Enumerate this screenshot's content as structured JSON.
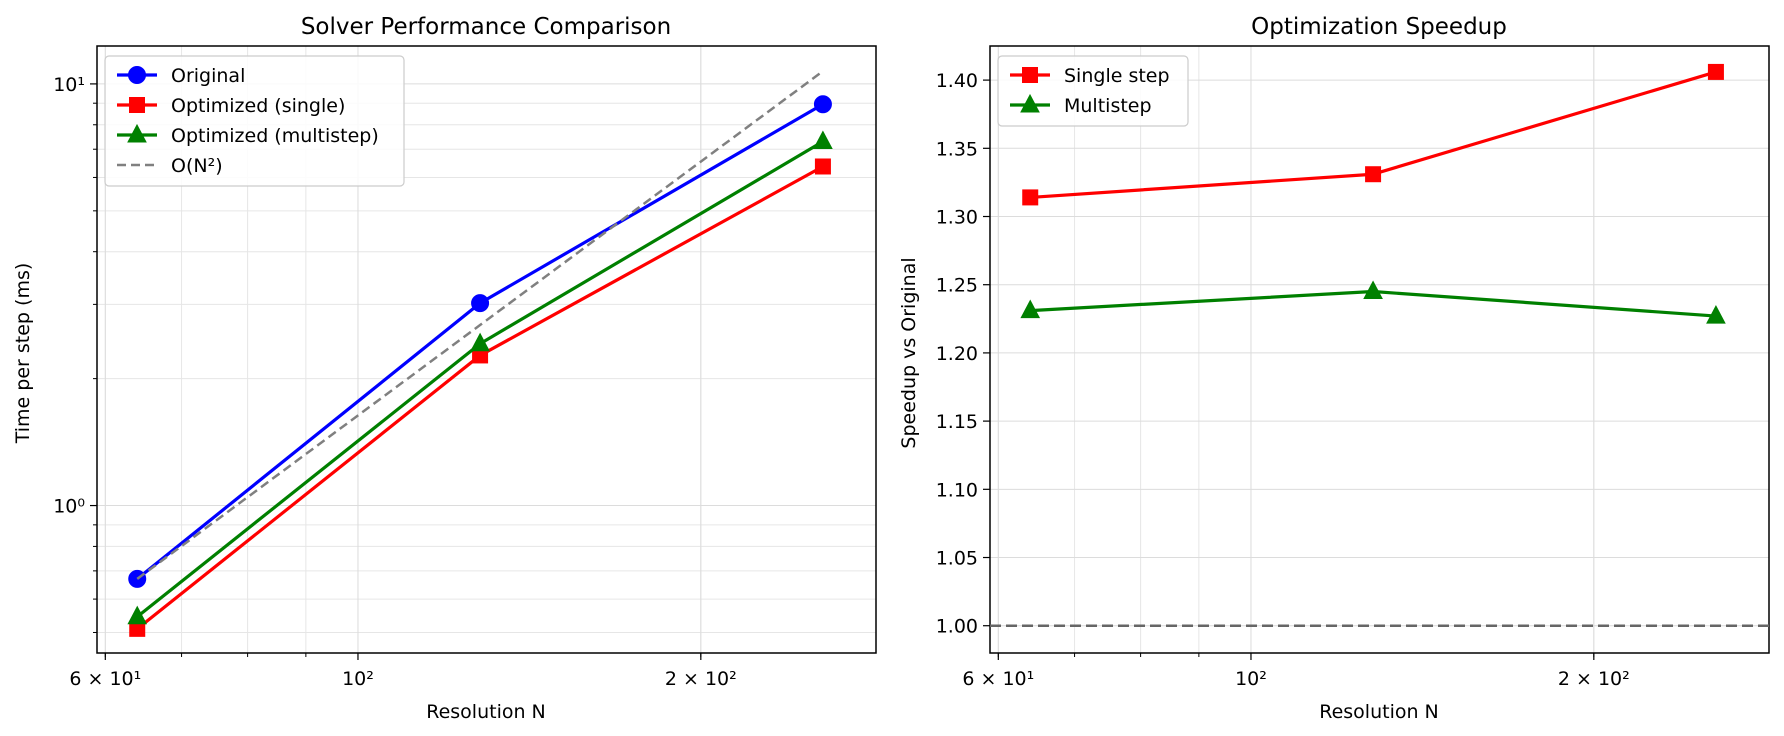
{
  "chart_data": [
    {
      "type": "line",
      "title": "Solver Performance Comparison",
      "xlabel": "Resolution N",
      "ylabel": "Time per step (ms)",
      "xscale": "log",
      "yscale": "log",
      "xlim": [
        59,
        285
      ],
      "ylim": [
        0.447,
        12.3
      ],
      "grid": true,
      "legend_position": "top-left",
      "x": [
        64,
        128,
        256
      ],
      "x_ticks": [
        {
          "value": 60,
          "label": "6 × 10¹"
        },
        {
          "value": 100,
          "label": "10²"
        },
        {
          "value": 200,
          "label": "2 × 10²"
        }
      ],
      "y_ticks": [
        {
          "value": 1,
          "label": "10⁰"
        },
        {
          "value": 10,
          "label": "10¹"
        }
      ],
      "series": [
        {
          "name": "Original",
          "values": [
            0.67,
            3.02,
            8.95
          ],
          "color": "#0000ff",
          "marker": "circle",
          "style": "solid"
        },
        {
          "name": "Optimized (single)",
          "values": [
            0.51,
            2.27,
            6.37
          ],
          "color": "#ff0000",
          "marker": "square",
          "style": "solid"
        },
        {
          "name": "Optimized (multistep)",
          "values": [
            0.545,
            2.42,
            7.3
          ],
          "color": "#008000",
          "marker": "triangle",
          "style": "solid"
        },
        {
          "name": "O(N²)",
          "values": [
            0.67,
            2.68,
            10.72
          ],
          "color": "#808080",
          "marker": "none",
          "style": "dashed"
        }
      ]
    },
    {
      "type": "line",
      "title": "Optimization Speedup",
      "xlabel": "Resolution N",
      "ylabel": "Speedup vs Original",
      "xscale": "log",
      "yscale": "linear",
      "xlim": [
        59,
        285
      ],
      "ylim": [
        0.98,
        1.425
      ],
      "grid": true,
      "legend_position": "top-left",
      "x": [
        64,
        128,
        256
      ],
      "x_ticks": [
        {
          "value": 60,
          "label": "6 × 10¹"
        },
        {
          "value": 100,
          "label": "10²"
        },
        {
          "value": 200,
          "label": "2 × 10²"
        }
      ],
      "y_ticks": [
        {
          "value": 1.0,
          "label": "1.00"
        },
        {
          "value": 1.05,
          "label": "1.05"
        },
        {
          "value": 1.1,
          "label": "1.10"
        },
        {
          "value": 1.15,
          "label": "1.15"
        },
        {
          "value": 1.2,
          "label": "1.20"
        },
        {
          "value": 1.25,
          "label": "1.25"
        },
        {
          "value": 1.3,
          "label": "1.30"
        },
        {
          "value": 1.35,
          "label": "1.35"
        },
        {
          "value": 1.4,
          "label": "1.40"
        }
      ],
      "reference_line": {
        "y": 1.0,
        "color": "#666666",
        "style": "dashed"
      },
      "series": [
        {
          "name": "Single step",
          "values": [
            1.314,
            1.331,
            1.406
          ],
          "color": "#ff0000",
          "marker": "square",
          "style": "solid"
        },
        {
          "name": "Multistep",
          "values": [
            1.231,
            1.245,
            1.227
          ],
          "color": "#008000",
          "marker": "triangle",
          "style": "solid"
        }
      ]
    }
  ]
}
